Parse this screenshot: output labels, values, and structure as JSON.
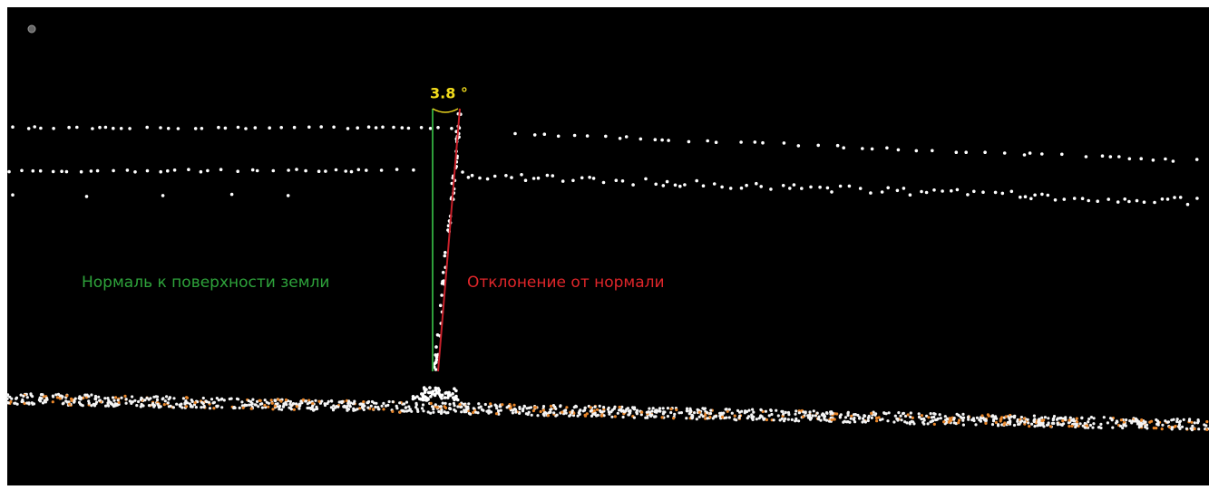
{
  "annotations": {
    "angle": "3.8 °",
    "normal_label": "Нормаль к поверхности земли",
    "deviation_label": "Отклонение  от нормали"
  }
}
